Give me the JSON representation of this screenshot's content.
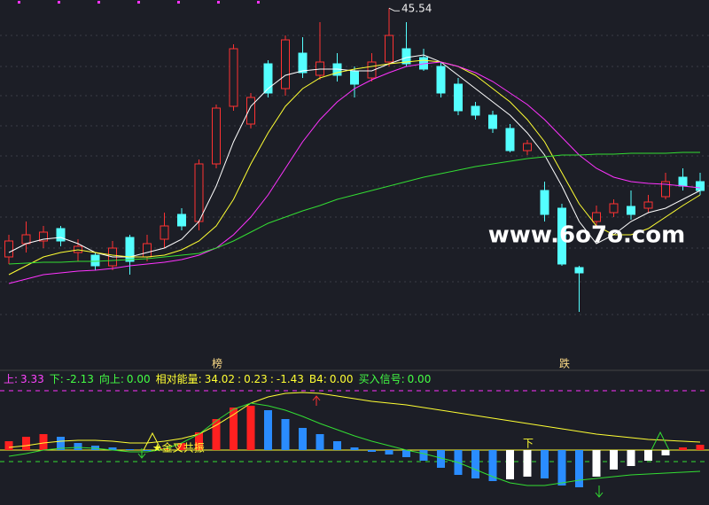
{
  "chart_data": [
    {
      "type": "candlestick",
      "ylim": [
        26,
        46
      ],
      "up_color": "#ff3232",
      "down_color": "#54ffff",
      "open": [
        31.5,
        32.25,
        32.4,
        33.1,
        31.75,
        31.6,
        31,
        32.6,
        31.5,
        32.5,
        33.9,
        33.5,
        36.75,
        40,
        39,
        42.4,
        41,
        43,
        41.75,
        42.4,
        42,
        41.6,
        42.5,
        43.25,
        42.75,
        42.25,
        41.25,
        40,
        39.5,
        38.75,
        37.5,
        35.25,
        34.25,
        30.9,
        33.5,
        34,
        34.35,
        34.25,
        34.9,
        36,
        35.75
      ],
      "close": [
        32.4,
        32.75,
        32.9,
        32.4,
        32.1,
        31,
        32,
        31.25,
        32.25,
        33.25,
        33.25,
        36.75,
        39.9,
        43.25,
        40.5,
        40.75,
        43.75,
        41.9,
        42.5,
        41.75,
        41.25,
        42.5,
        44,
        42.4,
        42.1,
        40.75,
        39.75,
        39.5,
        38.75,
        37.5,
        37.9,
        33.9,
        31.1,
        30.6,
        34,
        34.5,
        33.9,
        34.6,
        35.75,
        35.5,
        35.25
      ],
      "high": [
        32.75,
        33.5,
        33.25,
        33.25,
        32.5,
        31.75,
        32.4,
        32.75,
        32.75,
        34,
        34.25,
        37,
        40.1,
        43.5,
        40.75,
        42.6,
        44,
        43.9,
        44.75,
        43,
        42.25,
        43,
        45.54,
        44.75,
        43.25,
        42.5,
        41.6,
        40.25,
        39.75,
        39,
        38.1,
        35.75,
        34.5,
        31,
        34.4,
        34.75,
        35.25,
        35,
        36.25,
        36.5,
        36.25
      ],
      "low": [
        31.1,
        31.75,
        32,
        32.1,
        31.25,
        30.75,
        30.75,
        30.5,
        31.25,
        32,
        33,
        33,
        36.5,
        39.75,
        38.75,
        40.5,
        40.6,
        41.6,
        41.5,
        41.4,
        40.5,
        41.4,
        42.25,
        42.25,
        42,
        40.5,
        39.5,
        39.25,
        38.5,
        37.4,
        37.25,
        33.5,
        31,
        28.4,
        33.25,
        33.75,
        33.6,
        34,
        34.75,
        35.25,
        35
      ],
      "series": [
        {
          "color": "#ffffff",
          "values": [
            31.75,
            32.25,
            32.5,
            32.6,
            32.25,
            31.75,
            31.5,
            31.5,
            31.75,
            32,
            32.5,
            33.5,
            35.5,
            38,
            40,
            41,
            41.75,
            42,
            42.1,
            42.1,
            42,
            42,
            42.4,
            42.75,
            42.9,
            42.5,
            41.75,
            41,
            40.25,
            39.5,
            38.5,
            37.25,
            35.5,
            33.5,
            32.25,
            32.75,
            33.5,
            34,
            34.25,
            34.75,
            35.25
          ]
        },
        {
          "color": "#ffff33",
          "values": [
            30.5,
            31,
            31.5,
            31.75,
            31.9,
            31.75,
            31.6,
            31.5,
            31.5,
            31.6,
            31.9,
            32.4,
            33.25,
            34.75,
            36.75,
            38.5,
            40,
            41,
            41.6,
            41.9,
            42.1,
            42.25,
            42.4,
            42.5,
            42.6,
            42.5,
            42.25,
            41.75,
            41,
            40.25,
            39.25,
            38,
            36.25,
            34.5,
            33.25,
            32.75,
            32.75,
            33.1,
            33.75,
            34.4,
            35
          ]
        },
        {
          "color": "#ff33ff",
          "values": [
            30,
            30.25,
            30.5,
            30.6,
            30.7,
            30.75,
            30.85,
            31,
            31.1,
            31.2,
            31.35,
            31.6,
            32,
            32.75,
            33.75,
            35,
            36.5,
            38,
            39.25,
            40.25,
            41,
            41.5,
            41.9,
            42.25,
            42.4,
            42.5,
            42.25,
            41.9,
            41.4,
            40.75,
            40.1,
            39.25,
            38.25,
            37.25,
            36.5,
            36,
            35.75,
            35.65,
            35.6,
            35.5,
            35.4
          ]
        },
        {
          "color": "#33dd33",
          "values": [
            31.1,
            31.15,
            31.2,
            31.2,
            31.25,
            31.25,
            31.3,
            31.35,
            31.4,
            31.5,
            31.6,
            31.7,
            32,
            32.4,
            32.9,
            33.4,
            33.75,
            34.1,
            34.4,
            34.75,
            35,
            35.25,
            35.5,
            35.75,
            36,
            36.2,
            36.4,
            36.6,
            36.75,
            36.9,
            37.05,
            37.15,
            37.25,
            37.25,
            37.3,
            37.3,
            37.35,
            37.35,
            37.35,
            37.4,
            37.4
          ]
        }
      ],
      "annotations": [
        "榜",
        "跌"
      ],
      "watermark": "www.6o7o.com"
    },
    {
      "type": "bar",
      "ylim": [
        -6.2,
        8.8
      ],
      "readouts": [
        {
          "name": "上:",
          "value": 3.33,
          "color": "#ff44ff"
        },
        {
          "name": "下:",
          "value": -2.13,
          "color": "#44ff44"
        },
        {
          "name": "向上:",
          "value": 0,
          "value_label": "0.00",
          "color": "#44ff44"
        },
        {
          "name": "相对能量:",
          "values": [
            34.02,
            0.23,
            -1.43
          ],
          "color": "#ffff33"
        },
        {
          "name": "B4:",
          "value": 0,
          "value_label": "0.00",
          "color": "#ffff33"
        },
        {
          "name": "买入信号:",
          "value": 0,
          "value_label": "0.00",
          "color": "#44ff44"
        }
      ],
      "values": [
        1,
        1.5,
        1.8,
        1.5,
        0.8,
        0.5,
        0.3,
        0.1,
        0,
        0.2,
        0.8,
        2,
        3.5,
        4.8,
        5,
        4.5,
        3.5,
        2.5,
        1.8,
        1,
        0.3,
        -0.2,
        -0.5,
        -0.8,
        -1.2,
        -2,
        -2.8,
        -3.2,
        -3.5,
        -3.3,
        -3,
        -3.2,
        -4,
        -4.2,
        -3,
        -2.2,
        -1.8,
        -1.2,
        -0.6,
        0.3,
        0.6
      ],
      "colors": [
        "#ff2020",
        "#ff2020",
        "#ff2020",
        "#2a8cff",
        "#2a8cff",
        "#2a8cff",
        "#2a8cff",
        "#2a8cff",
        "#2a8cff",
        "#ff2020",
        "#ff2020",
        "#ff2020",
        "#ff2020",
        "#ff2020",
        "#ff2020",
        "#2a8cff",
        "#2a8cff",
        "#2a8cff",
        "#2a8cff",
        "#2a8cff",
        "#2a8cff",
        "#2a8cff",
        "#2a8cff",
        "#2a8cff",
        "#2a8cff",
        "#2a8cff",
        "#2a8cff",
        "#2a8cff",
        "#2a8cff",
        "#ffffff",
        "#ffffff",
        "#2a8cff",
        "#2a8cff",
        "#2a8cff",
        "#ffffff",
        "#ffffff",
        "#ffffff",
        "#ffffff",
        "#ffffff",
        "#ff2020",
        "#ff2020"
      ],
      "series": [
        {
          "color": "#ffff33",
          "values": [
            0.3,
            0.5,
            0.8,
            1,
            1.1,
            1.1,
            1,
            0.8,
            0.8,
            1,
            1.3,
            1.8,
            2.8,
            4,
            5.3,
            6,
            6.4,
            6.5,
            6.4,
            6.1,
            5.8,
            5.5,
            5.3,
            5.1,
            4.8,
            4.5,
            4.2,
            3.9,
            3.6,
            3.3,
            3,
            2.7,
            2.4,
            2.1,
            1.8,
            1.6,
            1.4,
            1.2,
            1.1,
            1,
            0.9
          ]
        },
        {
          "color": "#33dd33",
          "values": [
            -0.7,
            -0.4,
            0,
            0.2,
            0.3,
            0.2,
            0,
            -0.2,
            -0.2,
            0.1,
            0.8,
            1.8,
            3.3,
            4.6,
            5.3,
            5,
            4.5,
            3.8,
            3,
            2.3,
            1.6,
            1,
            0.5,
            0,
            -0.4,
            -0.9,
            -1.4,
            -2.2,
            -3,
            -3.7,
            -4,
            -4,
            -3.7,
            -3.4,
            -3.2,
            -3,
            -2.8,
            -2.7,
            -2.6,
            -2.5,
            -2.4
          ]
        }
      ],
      "levels": [
        {
          "value": 6.7,
          "color": "#ff33ff"
        },
        {
          "value": 0,
          "color": "#ffff33"
        },
        {
          "value": -1.3,
          "color": "#33dd33"
        }
      ],
      "signals": [
        "★金叉共振",
        "下"
      ]
    }
  ]
}
